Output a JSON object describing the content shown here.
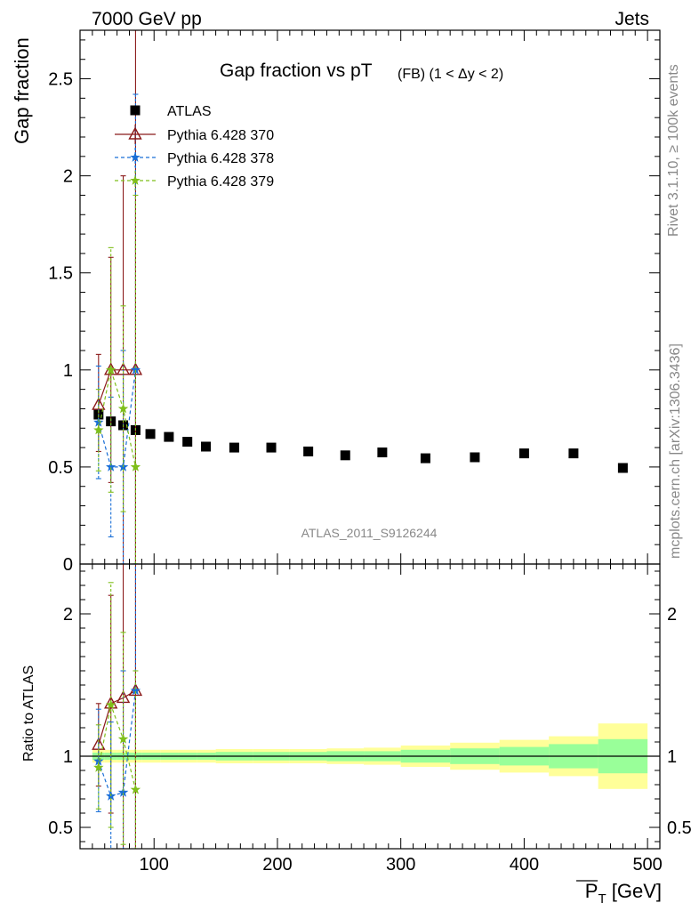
{
  "header": {
    "left": "7000 GeV pp",
    "right": "Jets",
    "side_top": "Rivet 3.1.10, ≥ 100k events",
    "side_bottom": "mcplots.cern.ch [arXiv:1306.3436]"
  },
  "chart_data": [
    {
      "type": "scatter",
      "title": "Gap fraction vs pT",
      "title_sub": "(FB) (1 < Δy < 2)",
      "ylabel": "Gap fraction",
      "xlim": [
        40,
        510
      ],
      "ylim": [
        0,
        2.75
      ],
      "yticks": [
        "0",
        "0.5",
        "1",
        "1.5",
        "2",
        "2.5"
      ],
      "watermark": "ATLAS_2011_S9126244",
      "legend_position": "top-left",
      "series": [
        {
          "name": "ATLAS",
          "color": "#000000",
          "marker": "square",
          "points": [
            {
              "x": 55,
              "y": 0.77
            },
            {
              "x": 65,
              "y": 0.735
            },
            {
              "x": 75,
              "y": 0.715
            },
            {
              "x": 85,
              "y": 0.69
            },
            {
              "x": 97,
              "y": 0.67
            },
            {
              "x": 112,
              "y": 0.655
            },
            {
              "x": 127,
              "y": 0.63
            },
            {
              "x": 142,
              "y": 0.605
            },
            {
              "x": 165,
              "y": 0.6
            },
            {
              "x": 195,
              "y": 0.6
            },
            {
              "x": 225,
              "y": 0.58
            },
            {
              "x": 255,
              "y": 0.56
            },
            {
              "x": 285,
              "y": 0.575
            },
            {
              "x": 320,
              "y": 0.545
            },
            {
              "x": 360,
              "y": 0.55
            },
            {
              "x": 400,
              "y": 0.57
            },
            {
              "x": 440,
              "y": 0.57
            },
            {
              "x": 480,
              "y": 0.495
            }
          ]
        },
        {
          "name": "Pythia 6.428 370",
          "color": "#8b1a1a",
          "marker": "triangle",
          "line": "solid",
          "points": [
            {
              "x": 55,
              "y": 0.82,
              "lo": 0.58,
              "hi": 1.08
            },
            {
              "x": 65,
              "y": 1.0,
              "lo": 0.42,
              "hi": 1.58
            },
            {
              "x": 75,
              "y": 1.0,
              "lo": 0.0,
              "hi": 2.0
            },
            {
              "x": 85,
              "y": 1.0,
              "lo": 0.0,
              "hi": 2.75
            }
          ]
        },
        {
          "name": "Pythia 6.428 378",
          "color": "#1a6fd6",
          "marker": "star",
          "line": "dashed",
          "points": [
            {
              "x": 55,
              "y": 0.73,
              "lo": 0.44,
              "hi": 1.02
            },
            {
              "x": 65,
              "y": 0.5,
              "lo": 0.14,
              "hi": 0.86
            },
            {
              "x": 75,
              "y": 0.5,
              "lo": 0.0,
              "hi": 1.1
            },
            {
              "x": 85,
              "y": 1.0,
              "lo": 0.0,
              "hi": 2.42
            }
          ]
        },
        {
          "name": "Pythia 6.428 379",
          "color": "#7fbf1a",
          "marker": "star",
          "line": "dashed",
          "points": [
            {
              "x": 55,
              "y": 0.69,
              "lo": 0.48,
              "hi": 0.9
            },
            {
              "x": 65,
              "y": 1.0,
              "lo": 0.37,
              "hi": 1.63
            },
            {
              "x": 75,
              "y": 0.8,
              "lo": 0.27,
              "hi": 1.33
            },
            {
              "x": 85,
              "y": 0.5,
              "lo": 0.0,
              "hi": 1.9
            }
          ]
        }
      ]
    },
    {
      "type": "scatter",
      "ylabel": "Ratio to ATLAS",
      "xlabel": "P_T [GeV]",
      "xlim": [
        40,
        510
      ],
      "ylim": [
        0.35,
        2.35
      ],
      "yticks": [
        "0.5",
        "1",
        "2"
      ],
      "xticks": [
        "100",
        "200",
        "300",
        "400",
        "500"
      ],
      "reference_line": 1,
      "uncertainty_bands": [
        {
          "x0": 50,
          "x1": 60,
          "inner": [
            0.975,
            1.025
          ],
          "outer": [
            0.955,
            1.045
          ]
        },
        {
          "x0": 60,
          "x1": 70,
          "inner": [
            0.975,
            1.025
          ],
          "outer": [
            0.955,
            1.045
          ]
        },
        {
          "x0": 70,
          "x1": 80,
          "inner": [
            0.975,
            1.025
          ],
          "outer": [
            0.955,
            1.045
          ]
        },
        {
          "x0": 80,
          "x1": 90,
          "inner": [
            0.975,
            1.025
          ],
          "outer": [
            0.955,
            1.045
          ]
        },
        {
          "x0": 90,
          "x1": 105,
          "inner": [
            0.975,
            1.025
          ],
          "outer": [
            0.955,
            1.045
          ]
        },
        {
          "x0": 105,
          "x1": 120,
          "inner": [
            0.975,
            1.025
          ],
          "outer": [
            0.955,
            1.045
          ]
        },
        {
          "x0": 120,
          "x1": 135,
          "inner": [
            0.975,
            1.025
          ],
          "outer": [
            0.955,
            1.045
          ]
        },
        {
          "x0": 135,
          "x1": 150,
          "inner": [
            0.975,
            1.025
          ],
          "outer": [
            0.955,
            1.045
          ]
        },
        {
          "x0": 150,
          "x1": 180,
          "inner": [
            0.97,
            1.03
          ],
          "outer": [
            0.95,
            1.05
          ]
        },
        {
          "x0": 180,
          "x1": 210,
          "inner": [
            0.97,
            1.03
          ],
          "outer": [
            0.95,
            1.05
          ]
        },
        {
          "x0": 210,
          "x1": 240,
          "inner": [
            0.97,
            1.03
          ],
          "outer": [
            0.95,
            1.05
          ]
        },
        {
          "x0": 240,
          "x1": 270,
          "inner": [
            0.965,
            1.035
          ],
          "outer": [
            0.945,
            1.055
          ]
        },
        {
          "x0": 270,
          "x1": 300,
          "inner": [
            0.965,
            1.035
          ],
          "outer": [
            0.94,
            1.06
          ]
        },
        {
          "x0": 300,
          "x1": 340,
          "inner": [
            0.955,
            1.045
          ],
          "outer": [
            0.925,
            1.075
          ]
        },
        {
          "x0": 340,
          "x1": 380,
          "inner": [
            0.945,
            1.055
          ],
          "outer": [
            0.905,
            1.095
          ]
        },
        {
          "x0": 380,
          "x1": 420,
          "inner": [
            0.935,
            1.065
          ],
          "outer": [
            0.885,
            1.115
          ]
        },
        {
          "x0": 420,
          "x1": 460,
          "inner": [
            0.915,
            1.085
          ],
          "outer": [
            0.86,
            1.14
          ]
        },
        {
          "x0": 460,
          "x1": 500,
          "inner": [
            0.88,
            1.12
          ],
          "outer": [
            0.77,
            1.23
          ]
        }
      ],
      "series": [
        {
          "name": "Pythia 6.428 370",
          "color": "#8b1a1a",
          "marker": "triangle",
          "line": "solid",
          "points": [
            {
              "x": 55,
              "y": 1.08,
              "lo": 0.79,
              "hi": 1.37
            },
            {
              "x": 65,
              "y": 1.37,
              "lo": 0.6,
              "hi": 2.13
            },
            {
              "x": 75,
              "y": 1.41,
              "lo": 0.0,
              "hi": 2.78
            },
            {
              "x": 85,
              "y": 1.46,
              "lo": 0.0,
              "hi": 3.0
            }
          ]
        },
        {
          "name": "Pythia 6.428 378",
          "color": "#1a6fd6",
          "marker": "star",
          "line": "dashed",
          "points": [
            {
              "x": 55,
              "y": 0.965,
              "lo": 0.61,
              "hi": 1.33
            },
            {
              "x": 65,
              "y": 0.72,
              "lo": 0.2,
              "hi": 1.24
            },
            {
              "x": 75,
              "y": 0.745,
              "lo": 0.0,
              "hi": 1.6
            },
            {
              "x": 85,
              "y": 1.46,
              "lo": 0.0,
              "hi": 3.0
            }
          ]
        },
        {
          "name": "Pythia 6.428 379",
          "color": "#7fbf1a",
          "marker": "star",
          "line": "dashed",
          "points": [
            {
              "x": 55,
              "y": 0.92,
              "lo": 0.63,
              "hi": 1.22
            },
            {
              "x": 65,
              "y": 1.36,
              "lo": 0.5,
              "hi": 2.22
            },
            {
              "x": 75,
              "y": 1.12,
              "lo": 0.38,
              "hi": 1.87
            },
            {
              "x": 85,
              "y": 0.765,
              "lo": 0.0,
              "hi": 1.6
            }
          ]
        }
      ]
    }
  ]
}
